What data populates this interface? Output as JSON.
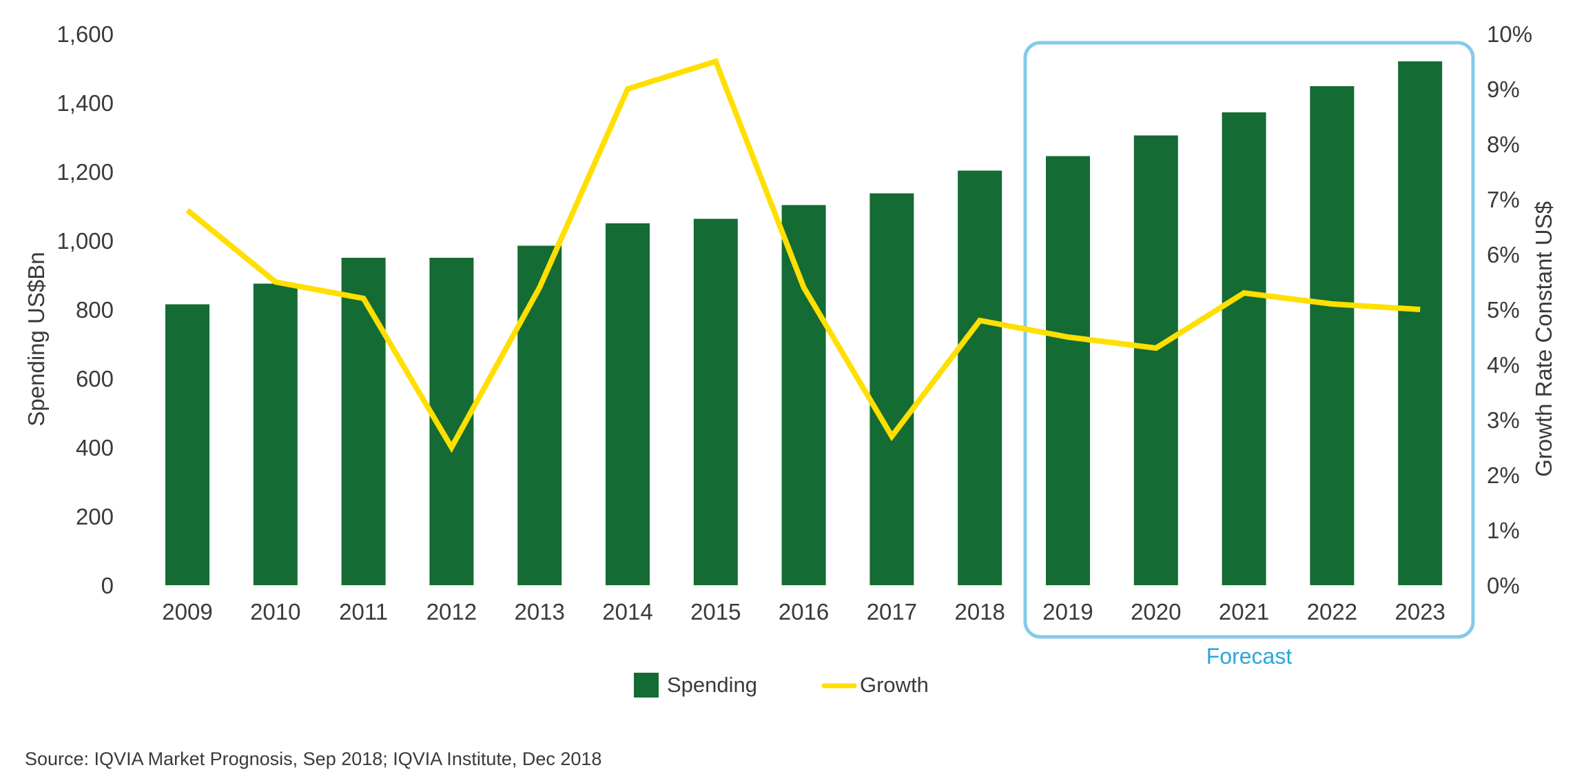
{
  "chart_data": {
    "type": "bar",
    "categories": [
      "2009",
      "2010",
      "2011",
      "2012",
      "2013",
      "2014",
      "2015",
      "2016",
      "2017",
      "2018",
      "2019",
      "2020",
      "2021",
      "2022",
      "2023"
    ],
    "series": [
      {
        "name": "Spending",
        "type": "bar",
        "axis": "left",
        "color": "#146b33",
        "values": [
          815,
          875,
          950,
          950,
          985,
          1050,
          1063,
          1103,
          1137,
          1203,
          1245,
          1305,
          1372,
          1448,
          1520
        ]
      },
      {
        "name": "Growth",
        "type": "line",
        "axis": "right",
        "color": "#ffdf00",
        "values": [
          6.8,
          5.5,
          5.2,
          2.5,
          5.4,
          9.0,
          9.5,
          5.4,
          2.7,
          4.8,
          4.5,
          4.3,
          5.3,
          5.1,
          5.0
        ]
      }
    ],
    "ylabel": "Spending US$Bn",
    "ylim": [
      0,
      1600
    ],
    "yticks": [
      "0",
      "200",
      "400",
      "600",
      "800",
      "1,000",
      "1,200",
      "1,400",
      "1,600"
    ],
    "y2label": "Growth Rate Constant US$",
    "y2lim": [
      0,
      10
    ],
    "y2ticks": [
      "0%",
      "1%",
      "2%",
      "3%",
      "4%",
      "5%",
      "6%",
      "7%",
      "8%",
      "9%",
      "10%"
    ],
    "grid": false,
    "legend": {
      "position": "bottom-center",
      "entries": [
        "Spending",
        "Growth"
      ]
    },
    "annotations": [
      {
        "text": "Forecast",
        "applies_to": [
          "2019",
          "2020",
          "2021",
          "2022",
          "2023"
        ],
        "color": "#2aa7dc",
        "box_color": "#85c9ea"
      }
    ]
  },
  "source": "Source: IQVIA Market Prognosis, Sep 2018; IQVIA Institute, Dec 2018"
}
